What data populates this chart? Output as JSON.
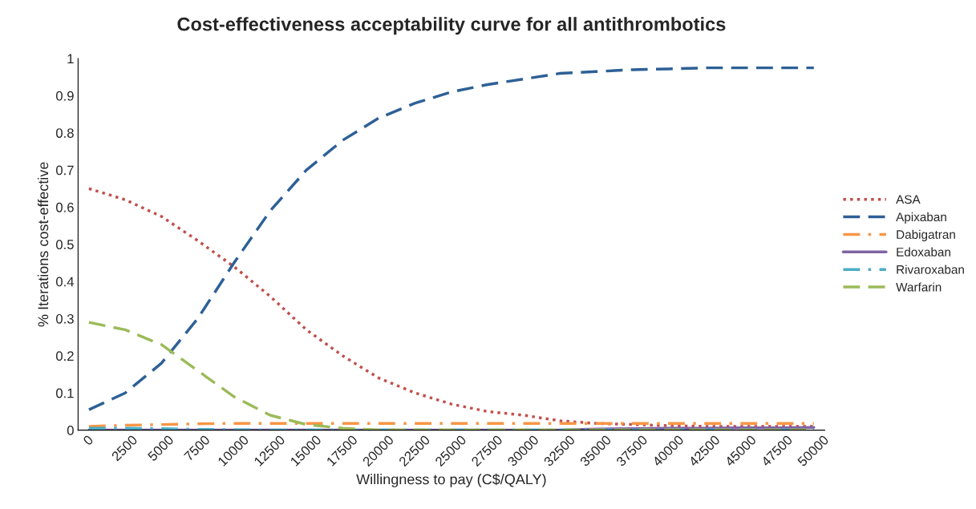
{
  "chart_data": {
    "type": "line",
    "title": "Cost-effectiveness acceptability curve for all antithrombotics",
    "xlabel": "Willingness to pay (C$/QALY)",
    "ylabel": "% Iterations cost-effective",
    "categories": [
      "0",
      "2500",
      "5000",
      "7500",
      "10000",
      "12500",
      "15000",
      "17500",
      "20000",
      "22500",
      "25000",
      "27500",
      "30000",
      "32500",
      "35000",
      "37500",
      "40000",
      "42500",
      "45000",
      "47500",
      "50000"
    ],
    "series": [
      {
        "name": "ASA",
        "color": "#c0504d",
        "line_style": "dotted",
        "values": [
          0.65,
          0.62,
          0.575,
          0.51,
          0.44,
          0.36,
          0.27,
          0.2,
          0.14,
          0.1,
          0.07,
          0.05,
          0.04,
          0.025,
          0.018,
          0.015,
          0.012,
          0.01,
          0.01,
          0.01,
          0.01
        ]
      },
      {
        "name": "Apixaban",
        "color": "#2e6096",
        "line_style": "dashed",
        "values": [
          0.055,
          0.1,
          0.18,
          0.3,
          0.45,
          0.59,
          0.7,
          0.78,
          0.84,
          0.88,
          0.91,
          0.93,
          0.945,
          0.96,
          0.965,
          0.97,
          0.972,
          0.975,
          0.975,
          0.975,
          0.975
        ]
      },
      {
        "name": "Dabigatran",
        "color": "#f79646",
        "line_style": "dashdot",
        "values": [
          0.01,
          0.013,
          0.015,
          0.017,
          0.018,
          0.018,
          0.018,
          0.018,
          0.018,
          0.018,
          0.018,
          0.018,
          0.018,
          0.018,
          0.018,
          0.018,
          0.018,
          0.018,
          0.018,
          0.018,
          0.018
        ]
      },
      {
        "name": "Edoxaban",
        "color": "#8064a2",
        "line_style": "solid",
        "values": [
          0,
          0,
          0,
          0,
          0,
          0,
          0,
          0,
          0,
          0,
          0,
          0,
          0,
          0,
          0.003,
          0.004,
          0.005,
          0.005,
          0.006,
          0.006,
          0.007
        ]
      },
      {
        "name": "Rivaroxaban",
        "color": "#4bacc6",
        "line_style": "dashdot",
        "values": [
          0.005,
          0.005,
          0.004,
          0.002,
          0.001,
          0,
          0,
          0,
          0,
          0,
          0,
          0,
          0,
          0,
          0,
          0,
          0,
          0,
          0,
          0,
          0
        ]
      },
      {
        "name": "Warfarin",
        "color": "#9bbb59",
        "line_style": "dashed",
        "values": [
          0.29,
          0.27,
          0.23,
          0.16,
          0.09,
          0.04,
          0.015,
          0.005,
          0,
          0,
          0,
          0,
          0,
          0,
          0,
          0,
          0,
          0,
          0,
          0,
          0
        ]
      }
    ],
    "ylim": [
      0,
      1
    ],
    "yticks": [
      0,
      0.1,
      0.2,
      0.3,
      0.4,
      0.5,
      0.6,
      0.7,
      0.8,
      0.9,
      1
    ],
    "grid": false,
    "legend": "right"
  }
}
